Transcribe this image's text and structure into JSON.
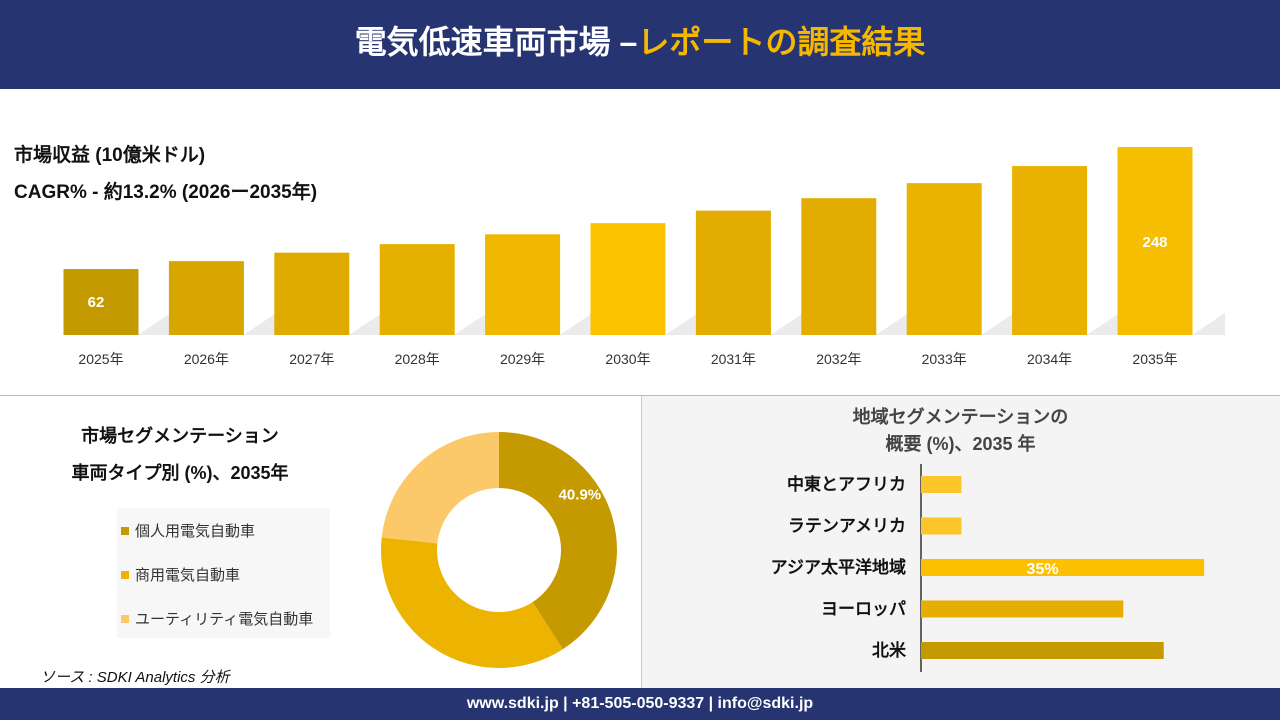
{
  "header": {
    "title_main": "電気低速車両市場 –",
    "title_accent": "レポートの調査結果"
  },
  "revenue": {
    "title": "市場収益 (10億米ドル)",
    "cagr": "CAGR% - 約13.2% (2026ー2035年)"
  },
  "chart_data": [
    {
      "type": "bar",
      "categories": [
        "2025年",
        "2026年",
        "2027年",
        "2028年",
        "2029年",
        "2030年",
        "2031年",
        "2032年",
        "2033年",
        "2034年",
        "2035年"
      ],
      "values": [
        62,
        74,
        87,
        100,
        115,
        132,
        151,
        170,
        193,
        219,
        248
      ],
      "data_labels": {
        "2025年": "62",
        "2035年": "248"
      },
      "colors": [
        "#C49A00",
        "#D8A600",
        "#DFAB00",
        "#E6B000",
        "#F0B800",
        "#FBC200",
        "#E3AC00",
        "#E3AC00",
        "#EAB300",
        "#E9B200",
        "#F5BE00"
      ]
    },
    {
      "type": "pie",
      "subtype": "donut",
      "title": "市場セグメンテーション 車両タイプ別 (%)、2035年",
      "title_lines": [
        "市場セグメンテーション",
        "車両タイプ別 (%)、2035年"
      ],
      "categories": [
        "個人用電気自動車",
        "商用電気自動車",
        "ユーティリティ電気自動車"
      ],
      "values": [
        40.9,
        35.8,
        23.3
      ],
      "data_labels": [
        "40.9%",
        "",
        ""
      ],
      "colors": [
        "#C49A00",
        "#ECB300",
        "#FBC96A"
      ],
      "legend": "left"
    },
    {
      "type": "bar",
      "orientation": "horizontal",
      "title_lines": [
        "地域セグメンテーションの",
        "概要 (%)、2035 年"
      ],
      "categories": [
        "中東とアフリカ",
        "ラテンアメリカ",
        "アジア太平洋地域",
        "ヨーロッパ",
        "北米"
      ],
      "values": [
        5,
        5,
        35,
        25,
        30
      ],
      "data_labels": [
        "",
        "",
        "35%",
        "",
        ""
      ],
      "colors": [
        "#FCC52A",
        "#FCC52A",
        "#FCC000",
        "#E6AE00",
        "#C49A00"
      ]
    }
  ],
  "source": "ソース : SDKI Analytics 分析",
  "footer": "www.sdki.jp | +81-505-050-9337 | info@sdki.jp"
}
